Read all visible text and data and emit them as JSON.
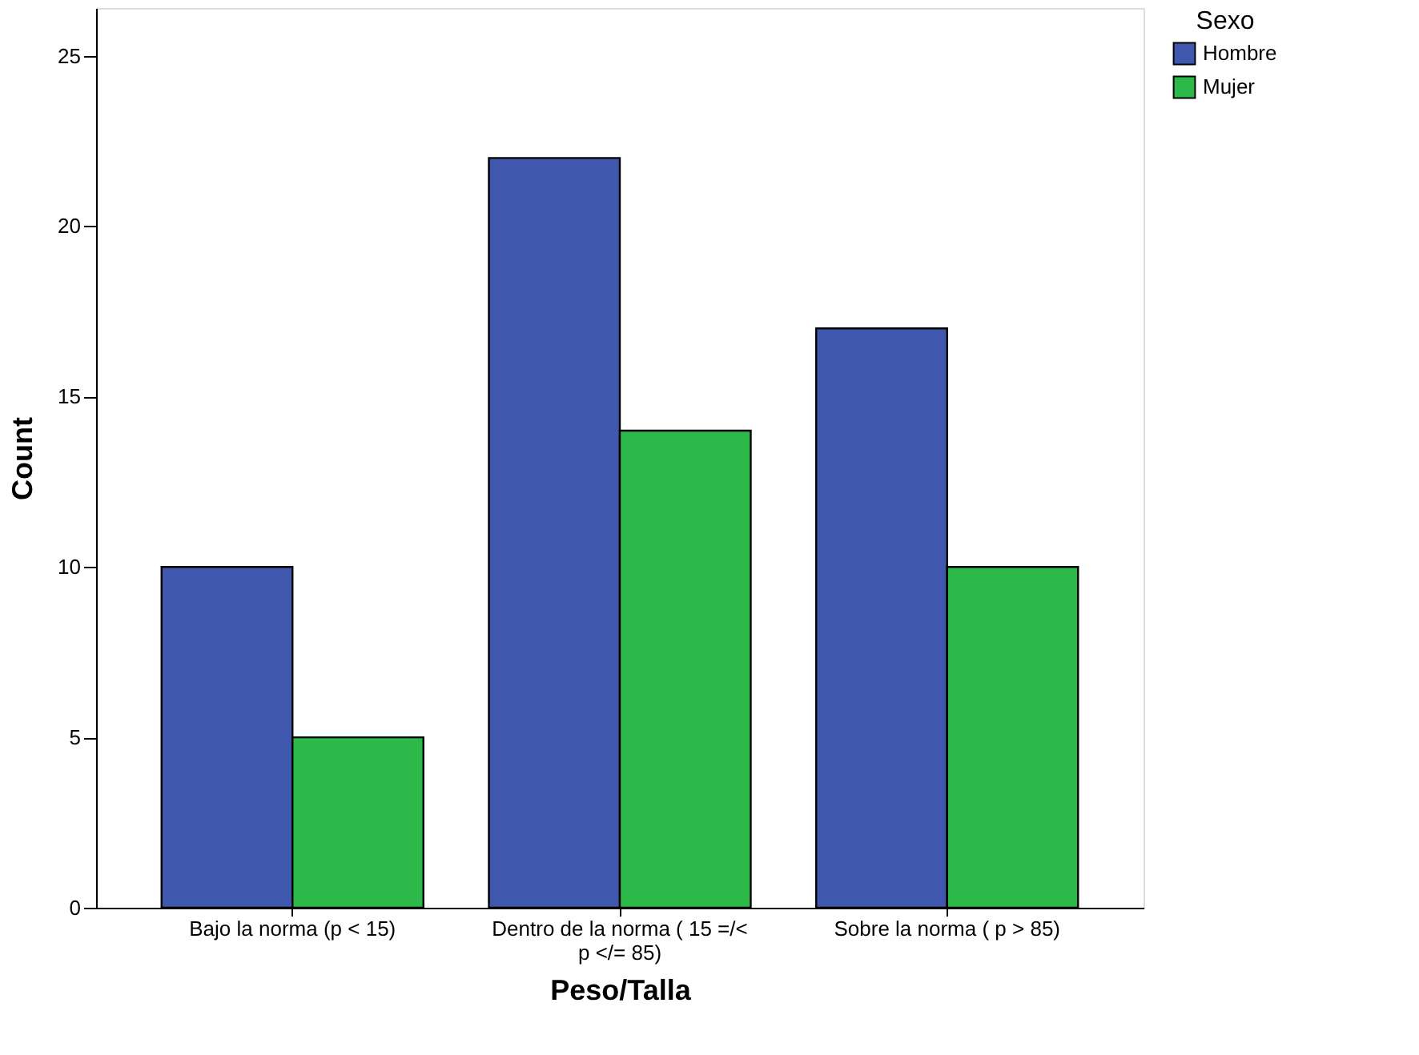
{
  "chart_data": {
    "type": "bar",
    "xlabel": "Peso/Talla",
    "ylabel": "Count",
    "legend_title": "Sexo",
    "legend": "top right",
    "grid": false,
    "categories": [
      "Bajo la norma (p < 15)",
      "Dentro de la norma ( 15 =/< p </= 85)",
      "Sobre la norma ( p > 85)"
    ],
    "series": [
      {
        "name": "Hombre",
        "color": "#3f58ae",
        "values": [
          10,
          22,
          17
        ]
      },
      {
        "name": "Mujer",
        "color": "#2db84a",
        "values": [
          5,
          14,
          10
        ]
      }
    ],
    "ylim": [
      0,
      26.4
    ],
    "yticks": [
      0,
      5,
      10,
      15,
      20,
      25
    ]
  }
}
